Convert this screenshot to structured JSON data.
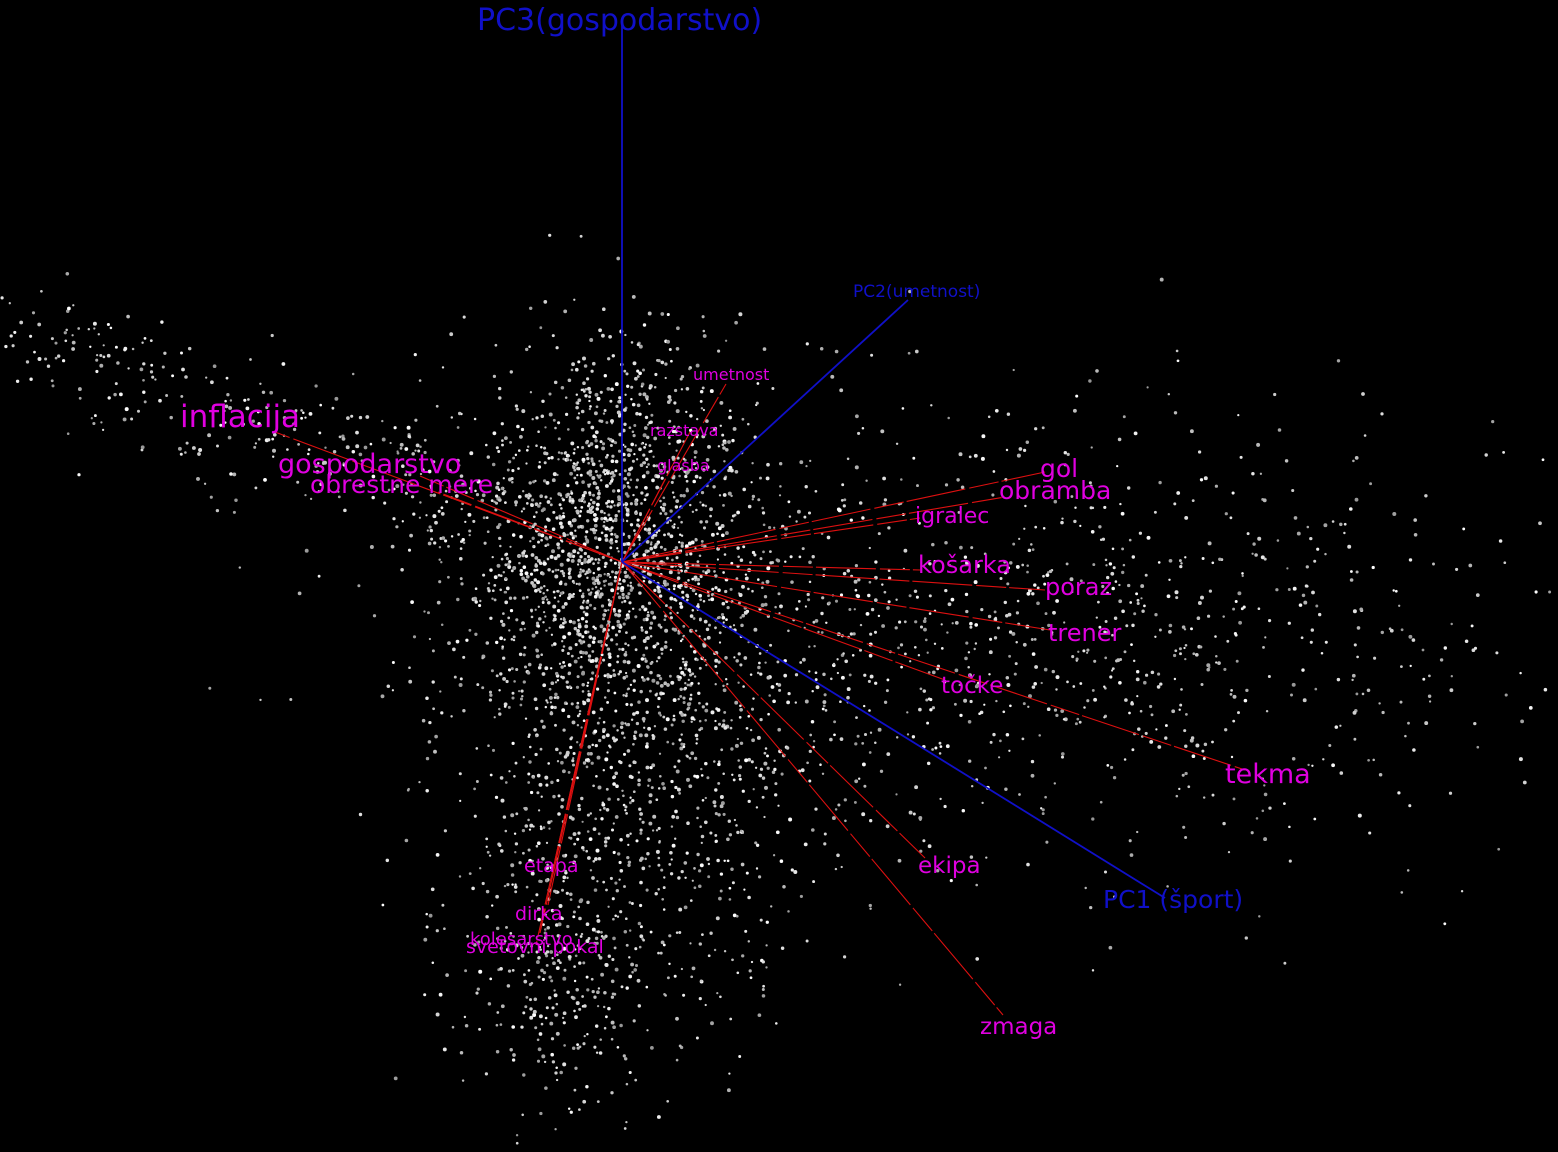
{
  "colors": {
    "background": "#000000",
    "axis": "#1010c8",
    "word_vector": "#dd1010",
    "word_label": "#e000e0",
    "point": "#d8d8d8"
  },
  "chart_data": {
    "type": "scatter",
    "projection": "3d-pca-biplot",
    "axes": [
      {
        "name": "PC1 (šport)",
        "label": "PC1 (šport)"
      },
      {
        "name": "PC2(umetnost)",
        "label": "PC2(umetnost)"
      },
      {
        "name": "PC3(gospodarstvo)",
        "label": "PC3(gospodarstvo)"
      }
    ],
    "word_vectors": [
      {
        "word": "inflacija",
        "group": "gospodarstvo"
      },
      {
        "word": "gospodarstvo",
        "group": "gospodarstvo"
      },
      {
        "word": "obrestne mere",
        "group": "gospodarstvo"
      },
      {
        "word": "umetnost",
        "group": "umetnost"
      },
      {
        "word": "razstava",
        "group": "umetnost"
      },
      {
        "word": "glasba",
        "group": "umetnost"
      },
      {
        "word": "gol",
        "group": "šport"
      },
      {
        "word": "obramba",
        "group": "šport"
      },
      {
        "word": "igralec",
        "group": "šport"
      },
      {
        "word": "košarka",
        "group": "šport"
      },
      {
        "word": "poraz",
        "group": "šport"
      },
      {
        "word": "trener",
        "group": "šport"
      },
      {
        "word": "točke",
        "group": "šport"
      },
      {
        "word": "tekma",
        "group": "šport"
      },
      {
        "word": "ekipa",
        "group": "šport"
      },
      {
        "word": "zmaga",
        "group": "šport"
      },
      {
        "word": "etapa",
        "group": "kolesarstvo"
      },
      {
        "word": "dirka",
        "group": "kolesarstvo"
      },
      {
        "word": "kolesarstvo",
        "group": "kolesarstvo"
      },
      {
        "word": "svetovni pokal",
        "group": "kolesarstvo"
      }
    ],
    "point_cloud": {
      "count": 4200,
      "color": "#d8d8d8"
    },
    "grid": false,
    "legend": "none"
  }
}
